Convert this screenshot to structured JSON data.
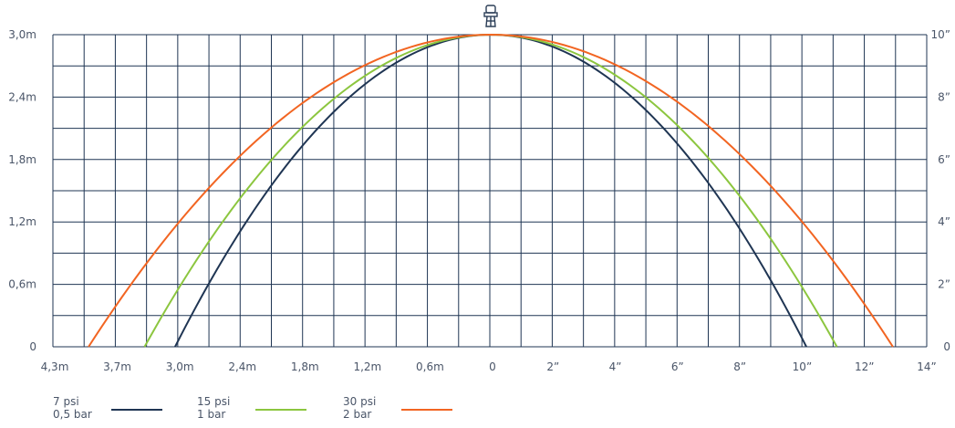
{
  "chart_data": {
    "type": "line",
    "x_left_labels": [
      "4,3m",
      "3,7m",
      "3,0m",
      "2,4m",
      "1,8m",
      "1,2m",
      "0,6m",
      "0"
    ],
    "x_right_labels": [
      "2”",
      "4”",
      "6”",
      "8”",
      "10”",
      "12”",
      "14”"
    ],
    "y_left_labels": [
      "0",
      "0,6m",
      "1,2m",
      "1,8m",
      "2,4m",
      "3,0m"
    ],
    "y_right_labels": [
      "0",
      "2”",
      "4”",
      "6”",
      "8”",
      "10”"
    ],
    "x_range_m": [
      -4.3,
      4.3
    ],
    "y_range_m": [
      0,
      3.0
    ],
    "grid": true,
    "legend_position": "bottom",
    "series": [
      {
        "name": "7 psi",
        "name2": "0,5 bar",
        "color": "#1f3553",
        "x_min": -3.1,
        "x_max": 3.1,
        "peak": 3.0
      },
      {
        "name": "15 psi",
        "name2": "1 bar",
        "color": "#8cc63f",
        "x_min": -3.4,
        "x_max": 3.4,
        "peak": 3.0
      },
      {
        "name": "30 psi",
        "name2": "2 bar",
        "color": "#f26522",
        "x_min": -3.95,
        "x_max": 3.95,
        "peak": 3.0
      }
    ]
  }
}
